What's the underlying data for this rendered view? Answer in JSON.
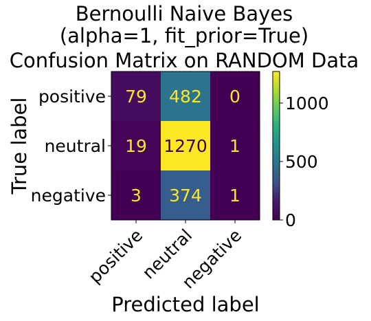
{
  "chart_data": {
    "type": "heatmap",
    "title": [
      "Bernoulli Naive Bayes",
      "(alpha=1, fit_prior=True)",
      "Confusion Matrix on RANDOM Data"
    ],
    "xlabel": "Predicted label",
    "ylabel": "True label",
    "x_categories": [
      "positive",
      "neutral",
      "negative"
    ],
    "y_categories": [
      "positive",
      "neutral",
      "negative"
    ],
    "values": [
      [
        79,
        482,
        0
      ],
      [
        19,
        1270,
        1
      ],
      [
        3,
        374,
        1
      ]
    ],
    "colormap": "viridis",
    "vmin": 0,
    "vmax": 1270,
    "colorbar_ticks": [
      0,
      500,
      1000
    ],
    "dark_text_color": "#fde725",
    "light_text_color": "#440154"
  }
}
